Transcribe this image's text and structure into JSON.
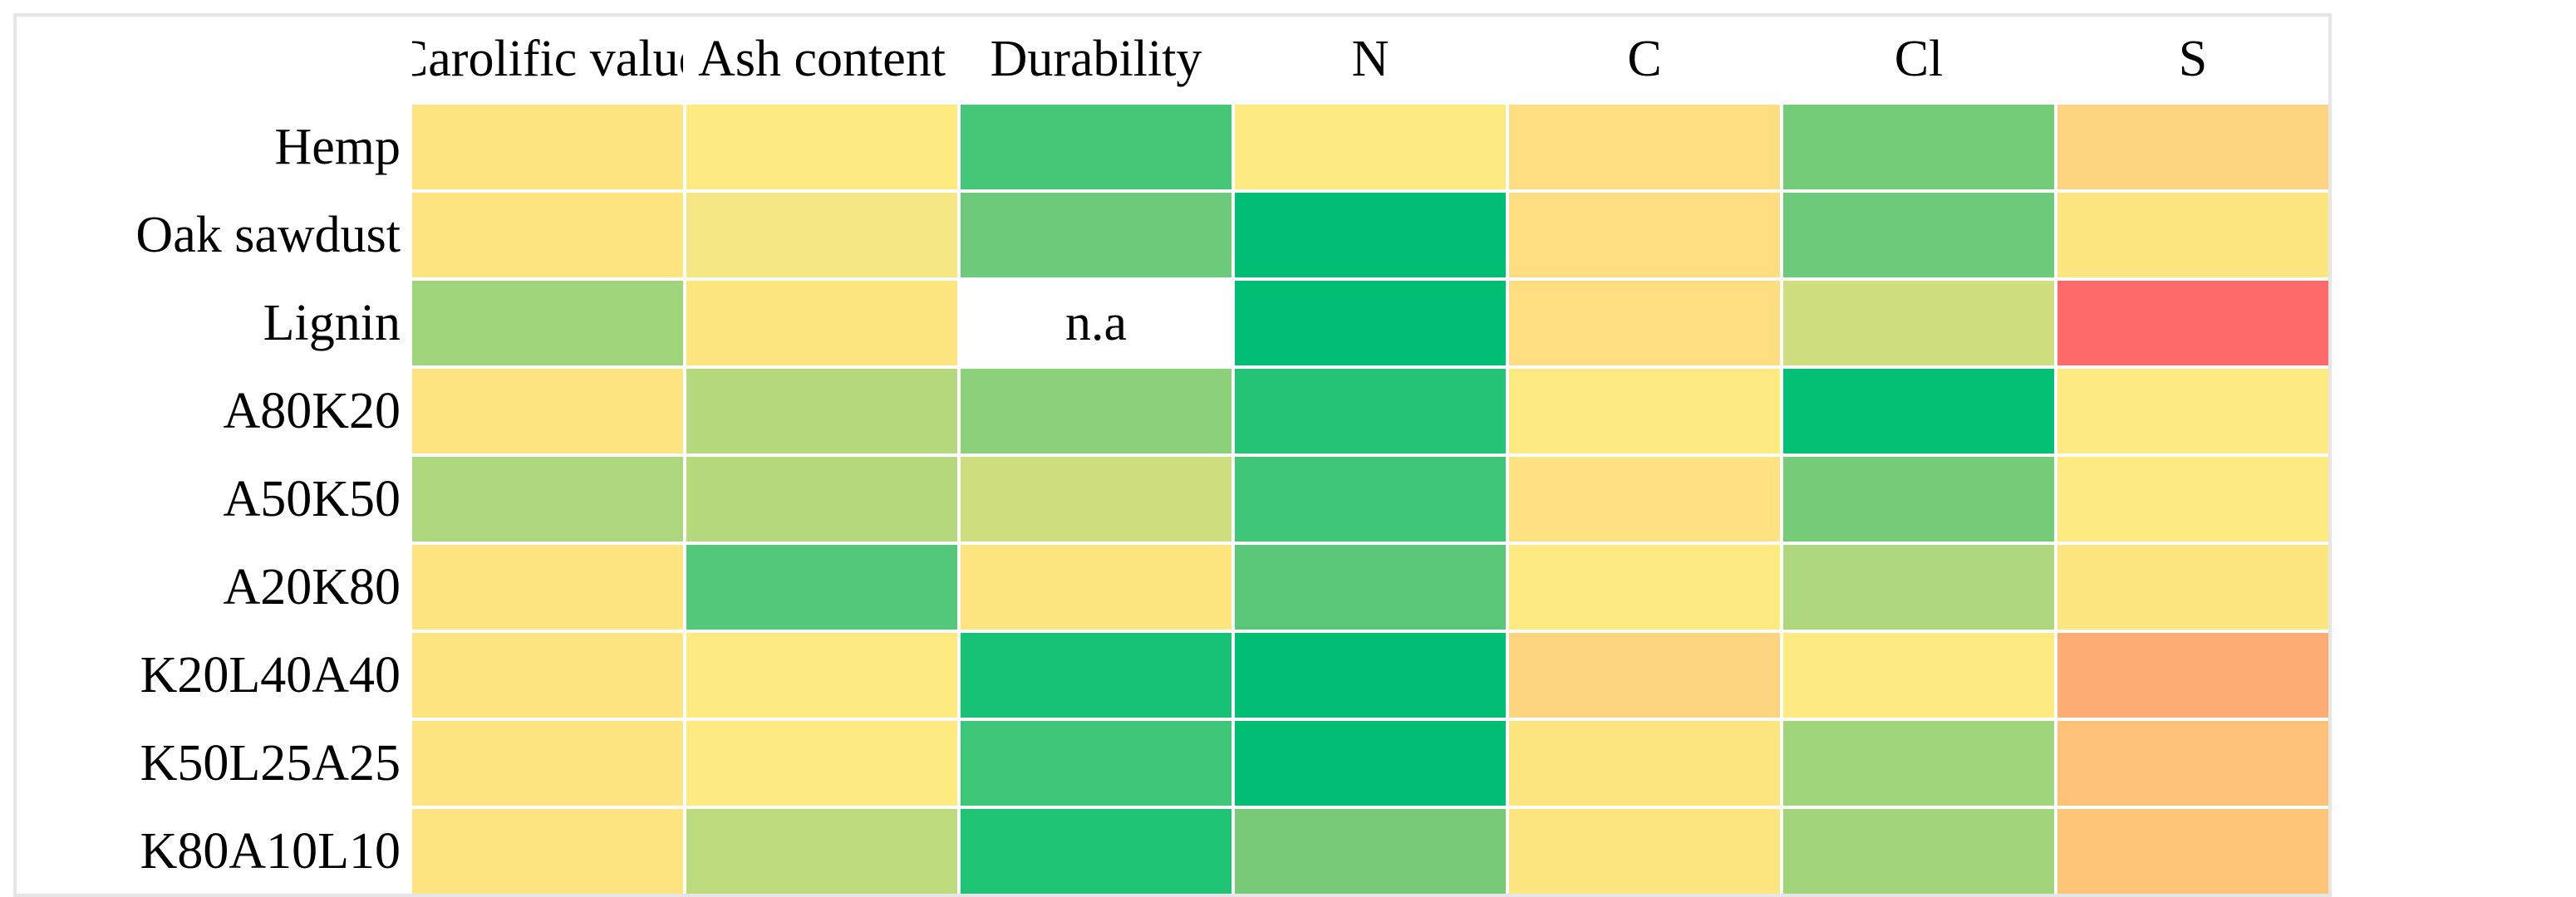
{
  "chart_data": {
    "type": "heatmap",
    "columns": [
      "Carolific value",
      "Ash content",
      "Durability",
      "N",
      "C",
      "Cl",
      "S"
    ],
    "rows": [
      "Hemp",
      "Oak sawdust",
      "Lignin",
      "A80K20",
      "A50K50",
      "A20K80",
      "K20L40A40",
      "K50L25A25",
      "K80A10L10"
    ],
    "cells": [
      [
        {
          "color": "#FEE582"
        },
        {
          "color": "#FDEA80"
        },
        {
          "color": "#44C877"
        },
        {
          "color": "#FDEA80"
        },
        {
          "color": "#FEDE81"
        },
        {
          "color": "#74CB78"
        },
        {
          "color": "#FDD47F"
        }
      ],
      [
        {
          "color": "#FEE582"
        },
        {
          "color": "#F5E784"
        },
        {
          "color": "#6DCA7A"
        },
        {
          "color": "#00BF74"
        },
        {
          "color": "#FEDE81"
        },
        {
          "color": "#6DCA7A"
        },
        {
          "color": "#FDE580"
        }
      ],
      [
        {
          "color": "#9FD57B"
        },
        {
          "color": "#FDE580"
        },
        {
          "color": "#FFFFFF",
          "label": "n.a"
        },
        {
          "color": "#00BF74"
        },
        {
          "color": "#FEDE81"
        },
        {
          "color": "#CFDE7F"
        },
        {
          "color": "#FD6A6A"
        }
      ],
      [
        {
          "color": "#FEE582"
        },
        {
          "color": "#B5D97D"
        },
        {
          "color": "#8DD07A"
        },
        {
          "color": "#23C475"
        },
        {
          "color": "#FDEA80"
        },
        {
          "color": "#02C174"
        },
        {
          "color": "#FDEA80"
        }
      ],
      [
        {
          "color": "#ADD87D"
        },
        {
          "color": "#B5D97D"
        },
        {
          "color": "#CFDE7F"
        },
        {
          "color": "#3FC777"
        },
        {
          "color": "#FEE282"
        },
        {
          "color": "#75CB78"
        },
        {
          "color": "#FDEA80"
        }
      ],
      [
        {
          "color": "#FEE582"
        },
        {
          "color": "#52C878"
        },
        {
          "color": "#FDE580"
        },
        {
          "color": "#5AC878"
        },
        {
          "color": "#FDEA80"
        },
        {
          "color": "#ADD77C"
        },
        {
          "color": "#FDE580"
        }
      ],
      [
        {
          "color": "#FEE582"
        },
        {
          "color": "#FDEA80"
        },
        {
          "color": "#16C275"
        },
        {
          "color": "#00BF74"
        },
        {
          "color": "#FDD47F"
        },
        {
          "color": "#FDEA80"
        },
        {
          "color": "#FDAD74"
        }
      ],
      [
        {
          "color": "#FEE582"
        },
        {
          "color": "#FDEA80"
        },
        {
          "color": "#3DC677"
        },
        {
          "color": "#00BF74"
        },
        {
          "color": "#FDE580"
        },
        {
          "color": "#9FD57B"
        },
        {
          "color": "#FDC278"
        }
      ],
      [
        {
          "color": "#FEE582"
        },
        {
          "color": "#BCDB7C"
        },
        {
          "color": "#1EC374"
        },
        {
          "color": "#76CA78"
        },
        {
          "color": "#FDE580"
        },
        {
          "color": "#A2D57B"
        },
        {
          "color": "#FDC578"
        }
      ]
    ]
  }
}
